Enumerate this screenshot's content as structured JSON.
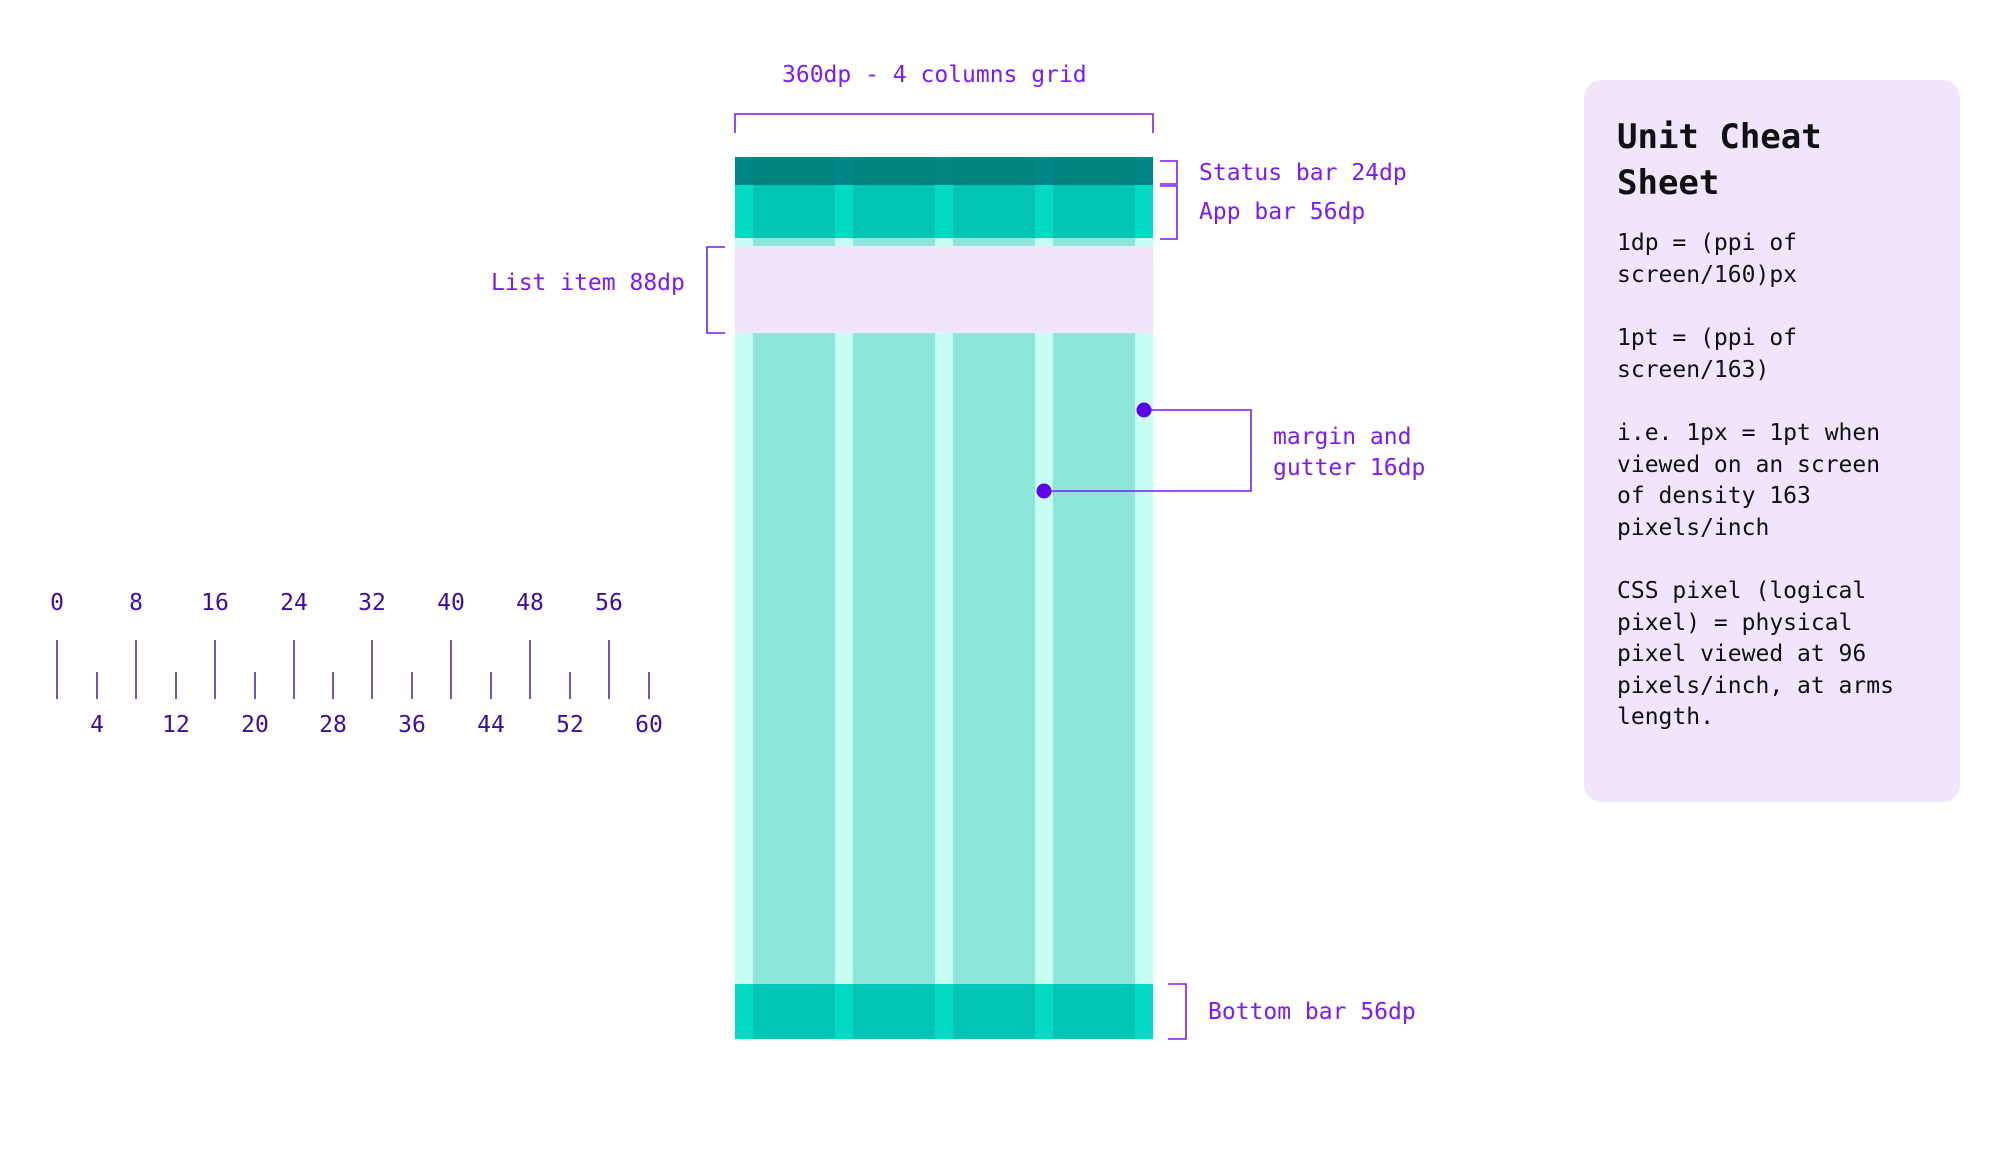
{
  "annotations": {
    "grid_width": "360dp - 4 columns grid",
    "status_bar": "Status bar 24dp",
    "app_bar": "App bar 56dp",
    "list_item": "List item 88dp",
    "margin_gutter": "margin and\ngutter 16dp",
    "bottom_bar": "Bottom bar 56dp"
  },
  "ruler": {
    "major_labels": [
      "0",
      "8",
      "16",
      "24",
      "32",
      "40",
      "48",
      "56"
    ],
    "minor_labels": [
      "4",
      "12",
      "20",
      "28",
      "36",
      "44",
      "52",
      "60"
    ]
  },
  "cheat_sheet": {
    "title": "Unit Cheat\nSheet",
    "paragraphs": [
      "1dp = (ppi of\nscreen/160)px",
      "1pt = (ppi of\nscreen/163)",
      "i.e. 1px = 1pt when\nviewed on an screen\nof density 163\npixels/inch",
      "CSS pixel (logical\npixel) = physical\npixel viewed at 96\npixels/inch, at arms\nlength."
    ]
  },
  "colors": {
    "accent": "#7c1aff",
    "accent_dark": "#3d0ba8",
    "marker": "#6200ee",
    "status_bar": "#018786",
    "app_bar": "#03dac6",
    "column": "#8ee5d9",
    "gutter": "#c8fff4",
    "list_item": "#f1e4fd",
    "card_bg": "#f1e4fd"
  }
}
